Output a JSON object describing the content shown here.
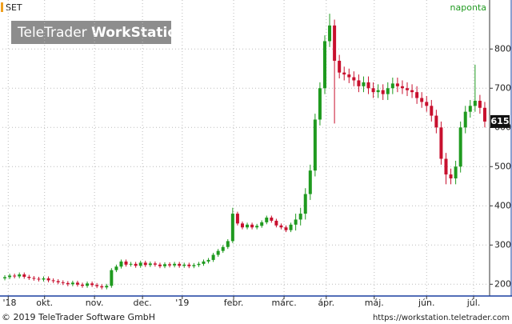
{
  "chart_data": {
    "type": "candlestick",
    "title": "SET",
    "interval": "naponta",
    "open": [
      215,
      218,
      222,
      220,
      225,
      219,
      216,
      214,
      212,
      215,
      210,
      208,
      205,
      203,
      200,
      204,
      199,
      196,
      202,
      198,
      195,
      192,
      196,
      236,
      245,
      258,
      250,
      252,
      247,
      255,
      249,
      253,
      250,
      246,
      251,
      248,
      252,
      247,
      250,
      246,
      249,
      252,
      258,
      262,
      275,
      285,
      295,
      310,
      380,
      355,
      345,
      352,
      345,
      349,
      358,
      370,
      362,
      350,
      345,
      338,
      352,
      365,
      380,
      430,
      490,
      620,
      700,
      820,
      860,
      770,
      740,
      735,
      728,
      720,
      705,
      715,
      700,
      690,
      695,
      685,
      700,
      712,
      705,
      700,
      695,
      690,
      675,
      665,
      655,
      630,
      600,
      520,
      480,
      470,
      500,
      600,
      640,
      655,
      668,
      650
    ],
    "high": [
      223,
      227,
      227,
      230,
      230,
      224,
      221,
      219,
      220,
      220,
      215,
      213,
      210,
      208,
      209,
      209,
      204,
      207,
      207,
      203,
      200,
      201,
      241,
      250,
      263,
      263,
      257,
      257,
      260,
      260,
      258,
      258,
      255,
      256,
      256,
      257,
      257,
      255,
      255,
      254,
      257,
      263,
      267,
      280,
      290,
      300,
      315,
      395,
      385,
      360,
      357,
      357,
      354,
      363,
      375,
      375,
      367,
      355,
      350,
      357,
      380,
      395,
      445,
      505,
      635,
      715,
      835,
      890,
      875,
      785,
      755,
      750,
      743,
      735,
      730,
      730,
      715,
      710,
      710,
      715,
      727,
      727,
      720,
      715,
      710,
      705,
      690,
      680,
      670,
      645,
      615,
      535,
      495,
      515,
      615,
      655,
      670,
      760,
      683,
      665
    ],
    "low": [
      210,
      213,
      215,
      215,
      214,
      211,
      209,
      207,
      207,
      205,
      203,
      200,
      198,
      195,
      195,
      194,
      191,
      191,
      193,
      190,
      187,
      187,
      191,
      231,
      240,
      245,
      245,
      242,
      242,
      244,
      244,
      245,
      241,
      241,
      243,
      243,
      242,
      242,
      241,
      241,
      244,
      247,
      253,
      257,
      270,
      280,
      290,
      305,
      350,
      340,
      340,
      340,
      340,
      344,
      353,
      357,
      345,
      340,
      333,
      333,
      337,
      350,
      365,
      415,
      475,
      605,
      685,
      805,
      610,
      725,
      720,
      713,
      705,
      690,
      690,
      685,
      675,
      675,
      670,
      670,
      685,
      690,
      685,
      680,
      675,
      660,
      650,
      640,
      615,
      585,
      505,
      455,
      455,
      455,
      485,
      585,
      625,
      640,
      635,
      600
    ],
    "close": [
      218,
      222,
      220,
      225,
      219,
      216,
      214,
      212,
      215,
      210,
      208,
      205,
      203,
      200,
      204,
      199,
      196,
      202,
      198,
      195,
      192,
      196,
      236,
      245,
      258,
      250,
      252,
      247,
      255,
      249,
      253,
      250,
      246,
      251,
      248,
      252,
      247,
      250,
      246,
      249,
      252,
      258,
      262,
      275,
      285,
      295,
      310,
      380,
      355,
      345,
      352,
      345,
      349,
      358,
      370,
      362,
      350,
      345,
      338,
      352,
      365,
      380,
      430,
      490,
      620,
      700,
      820,
      860,
      770,
      740,
      735,
      728,
      720,
      705,
      715,
      700,
      690,
      695,
      685,
      700,
      712,
      705,
      700,
      695,
      690,
      675,
      665,
      655,
      630,
      600,
      520,
      480,
      470,
      500,
      600,
      640,
      655,
      668,
      650,
      615
    ],
    "up_color": "#1f9a1f",
    "down_color": "#c8102e",
    "xlim": [
      -0.5,
      99.5
    ],
    "xticks": [
      {
        "value": 0.7,
        "label": "'18"
      },
      {
        "value": 8.2,
        "label": "okt."
      },
      {
        "value": 18.5,
        "label": "nov."
      },
      {
        "value": 28.4,
        "label": "dec."
      },
      {
        "value": 36.6,
        "label": "'19"
      },
      {
        "value": 47.2,
        "label": "febr."
      },
      {
        "value": 57.6,
        "label": "márc."
      },
      {
        "value": 66.3,
        "label": "ápr."
      },
      {
        "value": 76.2,
        "label": "máj."
      },
      {
        "value": 87,
        "label": "jún."
      },
      {
        "value": 96.7,
        "label": "júl."
      }
    ],
    "ylim": [
      170,
      925
    ],
    "yticks": [
      200,
      300,
      400,
      500,
      600,
      700,
      800
    ],
    "grid": true
  },
  "watermark": {
    "brand": "TeleTrader",
    "product": "WorkStation"
  },
  "footer": {
    "copyright": "© 2019 TeleTrader Software GmbH",
    "url": "https://workstation.teletrader.com"
  }
}
